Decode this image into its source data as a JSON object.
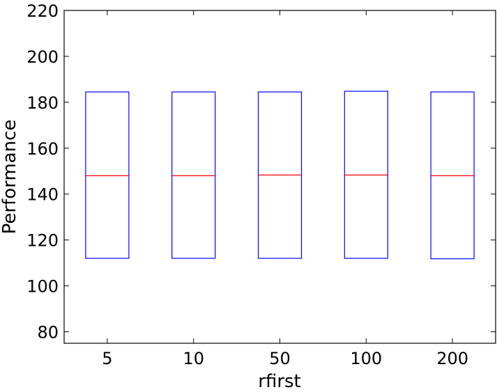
{
  "chart_data": {
    "type": "box",
    "title": "",
    "xlabel": "rfirst",
    "ylabel": "Performance",
    "ylim": [
      75,
      220
    ],
    "yticks": [
      80,
      100,
      120,
      140,
      160,
      180,
      200,
      220
    ],
    "categories": [
      "5",
      "10",
      "50",
      "100",
      "200"
    ],
    "boxes": [
      {
        "q1": 112,
        "median": 148,
        "q3": 184.5
      },
      {
        "q1": 112,
        "median": 148,
        "q3": 184.5
      },
      {
        "q1": 112,
        "median": 148.3,
        "q3": 184.5
      },
      {
        "q1": 112,
        "median": 148.3,
        "q3": 184.8
      },
      {
        "q1": 111.8,
        "median": 148,
        "q3": 184.5
      }
    ],
    "colors": {
      "box": "#0000ff",
      "median": "#ff0000",
      "axes": "#000000"
    },
    "grid": false
  }
}
